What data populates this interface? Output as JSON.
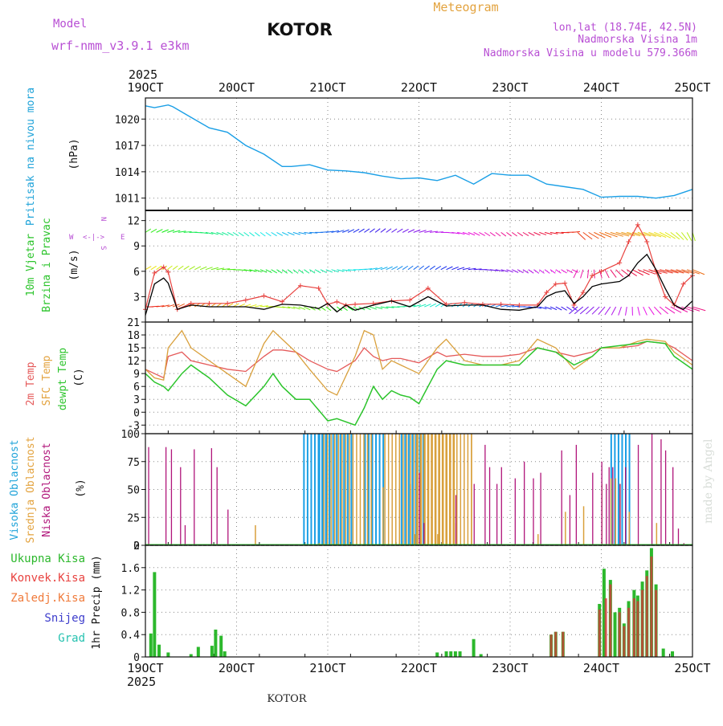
{
  "header": {
    "model_label": "Model",
    "model_name": "wrf-nmm_v3.9.1 e3km",
    "location": "KOTOR",
    "meteogram_label": "Meteogram",
    "coords": "lon,lat (18.74E, 42.5N)",
    "altitude": "Nadmorska Visina 1m",
    "model_altitude": "Nadmorska Visina u modelu 579.366m",
    "footer_location": "KOTOR",
    "watermark": "made by Angel"
  },
  "colors": {
    "pressure": "#1a9fe6",
    "wind_speed": "#000000",
    "gust": "#e8423f",
    "temp_2m": "#e55a5a",
    "temp_sfc": "#d9a03c",
    "dewpoint": "#2cc42c",
    "cloud_high": "#1a9fe6",
    "cloud_mid": "#d9a03c",
    "cloud_low": "#b0157a",
    "precip_total": "#2cb82c",
    "precip_conv": "#d23a3a",
    "precip_snow": "#3d3dcc",
    "precip_graupel": "#26c2b0",
    "label_cyan": "#1fa3d9",
    "label_green": "#2cc42c",
    "label_purple": "#b84fd4",
    "label_orange": "#e3a33f"
  },
  "chart_data": {
    "type": "line",
    "time_axis": {
      "year": "2025",
      "ticks": [
        "19OCT",
        "20OCT",
        "21OCT",
        "22OCT",
        "23OCT",
        "24OCT",
        "25OCT"
      ],
      "range_days": [
        0,
        6
      ]
    },
    "panels": {
      "pressure": {
        "ylabel_name": "Pritisak na nivou mora",
        "ylabel_unit": "(hPa)",
        "yticks": [
          "1011",
          "1014",
          "1017",
          "1020"
        ],
        "ylim": [
          1009.6,
          1022.4
        ],
        "x": [
          0,
          0.1,
          0.25,
          0.3,
          0.5,
          0.7,
          0.9,
          1.1,
          1.3,
          1.5,
          1.6,
          1.8,
          2.0,
          2.2,
          2.4,
          2.6,
          2.8,
          3.0,
          3.2,
          3.4,
          3.6,
          3.8,
          4.0,
          4.2,
          4.4,
          4.6,
          4.8,
          5.0,
          5.2,
          5.4,
          5.6,
          5.8,
          6.0
        ],
        "values": [
          1021.5,
          1021.3,
          1021.6,
          1021.4,
          1020.2,
          1019.0,
          1018.5,
          1017.0,
          1016.0,
          1014.6,
          1014.6,
          1014.8,
          1014.2,
          1014.1,
          1013.9,
          1013.5,
          1013.2,
          1013.3,
          1013.0,
          1013.6,
          1012.6,
          1013.8,
          1013.6,
          1013.6,
          1012.6,
          1012.3,
          1012.0,
          1011.1,
          1011.2,
          1011.2,
          1011.0,
          1011.3,
          1012.0
        ]
      },
      "wind": {
        "ylabel_name": "10m Vjetar",
        "ylabel_sub": "Brzina i Pravac",
        "ylabel_unit": "(m/s)",
        "yticks": [
          "3",
          "6",
          "9",
          "12"
        ],
        "ylim": [
          0,
          13.2
        ],
        "compass": {
          "north": "N",
          "west": "W",
          "east": "E",
          "south": "S",
          "glyph": "<-|->"
        },
        "x": [
          0,
          0.1,
          0.2,
          0.25,
          0.35,
          0.5,
          0.7,
          0.9,
          1.1,
          1.3,
          1.5,
          1.7,
          1.9,
          2.0,
          2.1,
          2.2,
          2.3,
          2.5,
          2.7,
          2.9,
          3.1,
          3.3,
          3.5,
          3.7,
          3.9,
          4.1,
          4.3,
          4.4,
          4.5,
          4.6,
          4.7,
          4.8,
          4.9,
          5.0,
          5.2,
          5.3,
          5.4,
          5.5,
          5.6,
          5.7,
          5.8,
          5.9,
          6.0
        ],
        "speed": [
          0.8,
          4.5,
          5.2,
          4.6,
          1.5,
          2.0,
          1.8,
          1.8,
          1.8,
          1.5,
          2.1,
          2.0,
          1.6,
          2.2,
          1.2,
          2.0,
          1.4,
          2.0,
          2.5,
          1.8,
          3.0,
          1.9,
          2.0,
          2.0,
          1.5,
          1.4,
          1.8,
          3.0,
          3.5,
          3.7,
          2.2,
          3.0,
          4.2,
          4.5,
          4.8,
          5.5,
          7.0,
          8.0,
          6.2,
          4.0,
          2.0,
          1.5,
          2.5
        ],
        "gust": [
          1.5,
          5.8,
          6.5,
          5.9,
          1.5,
          2.2,
          2.2,
          2.2,
          2.6,
          3.1,
          2.4,
          4.3,
          4.0,
          2.1,
          2.4,
          2.0,
          2.1,
          2.2,
          2.5,
          2.6,
          4.0,
          2.1,
          2.3,
          2.1,
          2.1,
          2.0,
          2.0,
          3.5,
          4.5,
          4.6,
          2.0,
          3.5,
          5.5,
          6.0,
          7.0,
          9.5,
          11.5,
          9.5,
          6.0,
          3.0,
          2.0,
          4.5,
          5.5
        ],
        "barb_rows_ms": [
          1.8,
          6.2,
          10.6
        ]
      },
      "temperature": {
        "ylabel_2m": "2m Temp",
        "ylabel_sfc": "SFC Temp",
        "ylabel_dew": "dewpt Temp",
        "ylabel_unit": "(C)",
        "yticks": [
          "-3",
          "0",
          "3",
          "6",
          "9",
          "12",
          "15",
          "18",
          "21"
        ],
        "ylim": [
          -5,
          21
        ],
        "x": [
          0,
          0.1,
          0.2,
          0.25,
          0.4,
          0.5,
          0.7,
          0.9,
          1.1,
          1.3,
          1.4,
          1.5,
          1.65,
          1.8,
          2.0,
          2.1,
          2.3,
          2.4,
          2.5,
          2.6,
          2.7,
          2.8,
          2.9,
          3.0,
          3.2,
          3.3,
          3.5,
          3.7,
          3.9,
          4.1,
          4.3,
          4.5,
          4.7,
          4.9,
          5.0,
          5.2,
          5.4,
          5.5,
          5.7,
          5.8,
          6.0
        ],
        "t2m": [
          10,
          9,
          8,
          13,
          14,
          12,
          11,
          10,
          9.5,
          13,
          14.5,
          14.5,
          14,
          12,
          10,
          9.5,
          12,
          15,
          13,
          12,
          12.5,
          12.5,
          12,
          11.5,
          14,
          13,
          13.5,
          13,
          13,
          13.5,
          15,
          14,
          13,
          14,
          15,
          15,
          15.5,
          16.5,
          16,
          15,
          12
        ],
        "tsfc": [
          10,
          8,
          7.5,
          15,
          19,
          15,
          12,
          9,
          6,
          16,
          19,
          17,
          14,
          10,
          5,
          4,
          13,
          19,
          18,
          10,
          12,
          11,
          10,
          9,
          15,
          17,
          12,
          11,
          11,
          12,
          17,
          15,
          10,
          13,
          15,
          15,
          16.5,
          17,
          16.5,
          14,
          11
        ],
        "tdew": [
          9,
          7,
          6,
          5,
          9,
          11,
          8,
          4,
          1.5,
          6,
          9,
          6,
          3,
          3,
          -2,
          -1.5,
          -3,
          1,
          6,
          3,
          5,
          4,
          3.5,
          2,
          10,
          12,
          11,
          11,
          11,
          11,
          15,
          14,
          11,
          13,
          15,
          15.5,
          16,
          16.5,
          16,
          13,
          10
        ]
      },
      "clouds": {
        "ylabel_high": "Visoka Oblacnost",
        "ylabel_mid": "Srednja Oblacnost",
        "ylabel_low": "Niska Oblacnost",
        "ylabel_unit": "(%)",
        "yticks": [
          "0",
          "25",
          "50",
          "75",
          "100"
        ],
        "ylim": [
          0,
          100
        ],
        "low": [
          [
            0.03,
            88
          ],
          [
            0.1,
            0
          ],
          [
            0.22,
            88
          ],
          [
            0.28,
            86
          ],
          [
            0.38,
            70
          ],
          [
            0.43,
            18
          ],
          [
            0.53,
            86
          ],
          [
            0.72,
            87
          ],
          [
            0.78,
            70
          ],
          [
            0.9,
            32
          ],
          [
            2.0,
            0
          ],
          [
            2.15,
            0
          ],
          [
            3.0,
            65
          ],
          [
            3.05,
            20
          ],
          [
            3.4,
            45
          ],
          [
            3.6,
            55
          ],
          [
            3.72,
            90
          ],
          [
            3.77,
            70
          ],
          [
            3.85,
            55
          ],
          [
            3.9,
            70
          ],
          [
            4.05,
            60
          ],
          [
            4.15,
            75
          ],
          [
            4.25,
            60
          ],
          [
            4.33,
            65
          ],
          [
            4.45,
            0
          ],
          [
            4.56,
            85
          ],
          [
            4.65,
            45
          ],
          [
            4.72,
            90
          ],
          [
            4.9,
            65
          ],
          [
            5.0,
            75
          ],
          [
            5.05,
            55
          ],
          [
            5.08,
            70
          ],
          [
            5.12,
            70
          ],
          [
            5.2,
            55
          ],
          [
            5.26,
            70
          ],
          [
            5.4,
            90
          ],
          [
            5.55,
            100
          ],
          [
            5.65,
            95
          ],
          [
            5.7,
            85
          ],
          [
            5.78,
            70
          ],
          [
            5.84,
            15
          ],
          [
            5.9,
            2
          ]
        ],
        "mid": [
          [
            1.2,
            18
          ],
          [
            1.9,
            2
          ],
          [
            2.6,
            52
          ],
          [
            2.9,
            55
          ],
          [
            2.95,
            10
          ],
          [
            3.2,
            10
          ],
          [
            3.4,
            20
          ],
          [
            4.3,
            10
          ],
          [
            4.6,
            30
          ],
          [
            4.8,
            35
          ],
          [
            5.0,
            55
          ],
          [
            5.1,
            60
          ],
          [
            5.15,
            60
          ],
          [
            5.2,
            55
          ],
          [
            5.3,
            30
          ],
          [
            5.6,
            20
          ]
        ],
        "high": [
          [
            4.8,
            0
          ]
        ],
        "high_blocks": [
          [
            1.73,
            2.26,
            100
          ],
          [
            1.9,
            1.98,
            100
          ],
          [
            2.4,
            2.6,
            100
          ],
          [
            2.8,
            3.05,
            100
          ],
          [
            5.1,
            5.3,
            100
          ]
        ],
        "mid_blocks": [
          [
            1.93,
            2.5,
            100
          ],
          [
            2.6,
            3.4,
            100
          ],
          [
            2.95,
            3.6,
            100
          ],
          [
            3.55,
            3.6,
            100
          ]
        ]
      },
      "precip": {
        "ylabel_unit": "1hr Precip (mm)",
        "legend": [
          "Ukupna Kisa",
          "Konvek.Kisa",
          "Zaledj.Kisa",
          "Snijeg",
          "Grad"
        ],
        "yticks": [
          "0",
          "0.4",
          "0.8",
          "1.2",
          "1.6",
          "2"
        ],
        "ylim": [
          0,
          2
        ],
        "total": [
          [
            0.06,
            0.42
          ],
          [
            0.1,
            1.52
          ],
          [
            0.15,
            0.22
          ],
          [
            0.25,
            0.08
          ],
          [
            0.5,
            0.05
          ],
          [
            0.58,
            0.18
          ],
          [
            0.73,
            0.2
          ],
          [
            0.77,
            0.49
          ],
          [
            0.83,
            0.38
          ],
          [
            0.87,
            0.1
          ],
          [
            3.2,
            0.08
          ],
          [
            3.3,
            0.1
          ],
          [
            3.35,
            0.1
          ],
          [
            3.4,
            0.1
          ],
          [
            3.45,
            0.1
          ],
          [
            3.6,
            0.32
          ],
          [
            3.68,
            0.05
          ],
          [
            4.45,
            0.4
          ],
          [
            4.5,
            0.45
          ],
          [
            4.58,
            0.45
          ],
          [
            4.98,
            0.95
          ],
          [
            5.03,
            1.58
          ],
          [
            5.1,
            1.38
          ],
          [
            5.15,
            0.8
          ],
          [
            5.2,
            0.88
          ],
          [
            5.25,
            0.6
          ],
          [
            5.3,
            1.0
          ],
          [
            5.36,
            1.2
          ],
          [
            5.4,
            1.1
          ],
          [
            5.45,
            1.35
          ],
          [
            5.5,
            1.55
          ],
          [
            5.55,
            1.95
          ],
          [
            5.6,
            1.3
          ],
          [
            5.68,
            0.15
          ],
          [
            5.78,
            0.1
          ]
        ],
        "conv": [
          [
            4.45,
            0.4
          ],
          [
            4.5,
            0.45
          ],
          [
            4.58,
            0.45
          ],
          [
            4.98,
            0.85
          ],
          [
            5.05,
            1.05
          ],
          [
            5.1,
            1.3
          ],
          [
            5.2,
            0.8
          ],
          [
            5.25,
            0.55
          ],
          [
            5.3,
            0.88
          ],
          [
            5.36,
            1.05
          ],
          [
            5.4,
            1.0
          ],
          [
            5.45,
            1.2
          ],
          [
            5.5,
            1.45
          ],
          [
            5.55,
            1.8
          ],
          [
            5.6,
            1.2
          ]
        ]
      }
    }
  }
}
